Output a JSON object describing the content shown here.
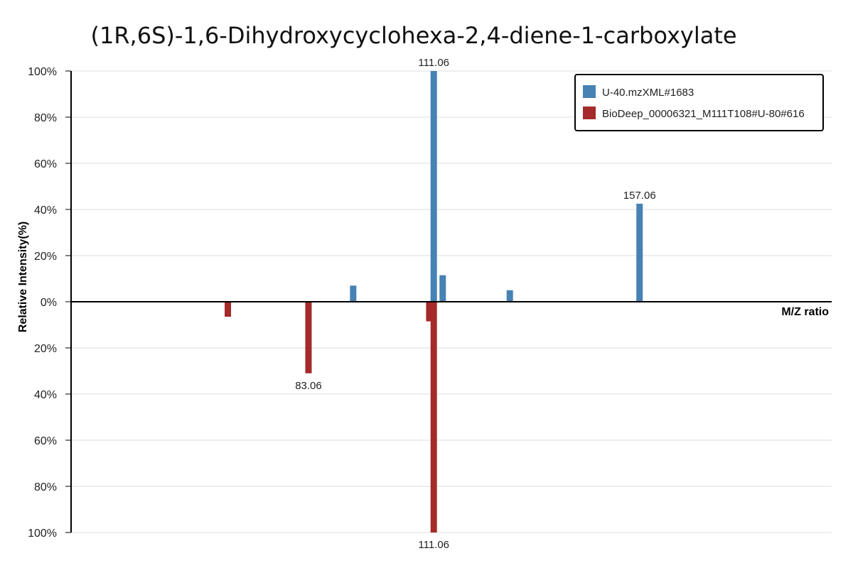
{
  "chart_data": {
    "type": "bar",
    "title": "(1R,6S)-1,6-Dihydroxycyclohexa-2,4-diene-1-carboxylate",
    "xlabel": "M/Z ratio",
    "ylabel": "Relative Intensity(%)",
    "ylim": [
      -100,
      100
    ],
    "yticks": [
      "100%",
      "80%",
      "60%",
      "40%",
      "20%",
      "0%",
      "20%",
      "40%",
      "60%",
      "80%",
      "100%"
    ],
    "grid": true,
    "legend_position": "top-right",
    "series": [
      {
        "name": "U-40.mzXML#1683",
        "color": "#4682b4",
        "direction": "up",
        "peaks": [
          {
            "mz": 93.05,
            "intensity": 7
          },
          {
            "mz": 111.06,
            "intensity": 100,
            "label": "111.06"
          },
          {
            "mz": 113.06,
            "intensity": 11.5
          },
          {
            "mz": 128.06,
            "intensity": 5
          },
          {
            "mz": 157.06,
            "intensity": 42.5,
            "label": "157.06"
          }
        ]
      },
      {
        "name": "BioDeep_00006321_M111T108#U-80#616",
        "color": "#a52a2a",
        "direction": "down",
        "peaks": [
          {
            "mz": 65.04,
            "intensity": 6.5
          },
          {
            "mz": 83.06,
            "intensity": 31,
            "label": "83.06"
          },
          {
            "mz": 110.06,
            "intensity": 8.5
          },
          {
            "mz": 111.06,
            "intensity": 100,
            "label": "111.06"
          }
        ]
      }
    ]
  }
}
